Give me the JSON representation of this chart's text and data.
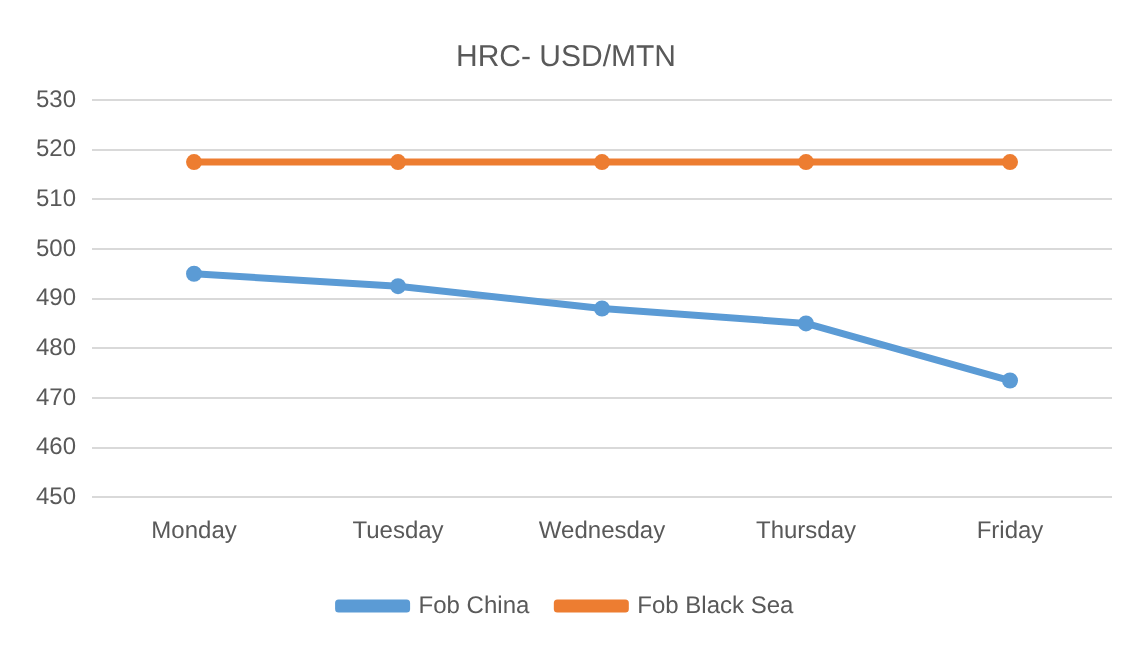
{
  "chart_data": {
    "type": "line",
    "title": "HRC- USD/MTN",
    "categories": [
      "Monday",
      "Tuesday",
      "Wednesday",
      "Thursday",
      "Friday"
    ],
    "series": [
      {
        "name": "Fob China",
        "color": "#5b9bd5",
        "values": [
          495,
          492.5,
          488,
          485,
          473.5
        ]
      },
      {
        "name": "Fob Black Sea",
        "color": "#ed7d31",
        "values": [
          517.5,
          517.5,
          517.5,
          517.5,
          517.5
        ]
      }
    ],
    "ylim": [
      450,
      530
    ],
    "yticks": [
      450,
      460,
      470,
      480,
      490,
      500,
      510,
      520,
      530
    ],
    "grid": "y",
    "legend": "bottom",
    "marker": "circle",
    "line_style": "solid"
  }
}
